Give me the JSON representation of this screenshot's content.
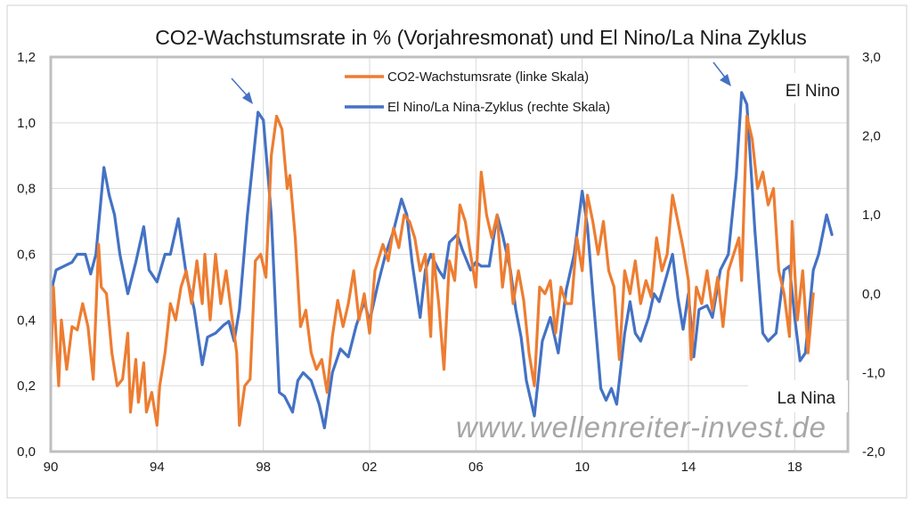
{
  "chart_data": {
    "type": "line",
    "title": "CO2-Wachstumsrate in % (Vorjahresmonat) und El Nino/La Nina Zyklus",
    "xlabel": "",
    "ylabel_left": "",
    "ylabel_right": "",
    "xlim": [
      1990,
      2020
    ],
    "ylim_left": [
      0.0,
      1.2
    ],
    "ylim_right": [
      -2.0,
      3.0
    ],
    "x_ticks": [
      {
        "value": 1990,
        "label": "90"
      },
      {
        "value": 1994,
        "label": "94"
      },
      {
        "value": 1998,
        "label": "98"
      },
      {
        "value": 2002,
        "label": "02"
      },
      {
        "value": 2006,
        "label": "06"
      },
      {
        "value": 2010,
        "label": "10"
      },
      {
        "value": 2014,
        "label": "14"
      },
      {
        "value": 2018,
        "label": "18"
      }
    ],
    "y_ticks_left": [
      {
        "value": 0.0,
        "label": "0,0"
      },
      {
        "value": 0.2,
        "label": "0,2"
      },
      {
        "value": 0.4,
        "label": "0,4"
      },
      {
        "value": 0.6,
        "label": "0,6"
      },
      {
        "value": 0.8,
        "label": "0,8"
      },
      {
        "value": 1.0,
        "label": "1,0"
      },
      {
        "value": 1.2,
        "label": "1,2"
      }
    ],
    "y_ticks_right": [
      {
        "value": -2.0,
        "label": "-2,0"
      },
      {
        "value": -1.0,
        "label": "-1,0"
      },
      {
        "value": 0.0,
        "label": "0,0"
      },
      {
        "value": 1.0,
        "label": "1,0"
      },
      {
        "value": 2.0,
        "label": "2,0"
      },
      {
        "value": 3.0,
        "label": "3,0"
      }
    ],
    "grid": true,
    "legend_position": "top-center",
    "series": [
      {
        "name": "CO2-Wachstumsrate (linke Skala)",
        "axis": "left",
        "color": "#ed7d31",
        "x": [
          1990.0,
          1990.1,
          1990.3,
          1990.4,
          1990.6,
          1990.8,
          1991.0,
          1991.2,
          1991.4,
          1991.6,
          1991.8,
          1991.9,
          1992.1,
          1992.3,
          1992.5,
          1992.7,
          1992.9,
          1993.0,
          1993.2,
          1993.3,
          1993.5,
          1993.6,
          1993.8,
          1994.0,
          1994.1,
          1994.3,
          1994.5,
          1994.7,
          1994.9,
          1995.1,
          1995.3,
          1995.5,
          1995.7,
          1995.8,
          1996.0,
          1996.2,
          1996.4,
          1996.6,
          1996.8,
          1997.0,
          1997.1,
          1997.3,
          1997.5,
          1997.7,
          1997.9,
          1998.1,
          1998.3,
          1998.5,
          1998.7,
          1998.9,
          1999.0,
          1999.2,
          1999.4,
          1999.6,
          1999.8,
          2000.0,
          2000.2,
          2000.4,
          2000.6,
          2000.8,
          2001.0,
          2001.2,
          2001.4,
          2001.6,
          2001.8,
          2002.0,
          2002.2,
          2002.5,
          2002.7,
          2002.9,
          2003.1,
          2003.3,
          2003.5,
          2003.7,
          2003.9,
          2004.1,
          2004.3,
          2004.4,
          2004.6,
          2004.8,
          2005.0,
          2005.2,
          2005.4,
          2005.6,
          2005.8,
          2006.0,
          2006.2,
          2006.4,
          2006.6,
          2006.8,
          2007.0,
          2007.2,
          2007.4,
          2007.6,
          2007.8,
          2008.0,
          2008.2,
          2008.4,
          2008.6,
          2008.8,
          2009.0,
          2009.2,
          2009.4,
          2009.6,
          2009.8,
          2010.0,
          2010.2,
          2010.4,
          2010.6,
          2010.8,
          2011.0,
          2011.2,
          2011.4,
          2011.6,
          2011.8,
          2012.0,
          2012.2,
          2012.4,
          2012.6,
          2012.8,
          2013.0,
          2013.2,
          2013.4,
          2013.6,
          2013.8,
          2014.0,
          2014.1,
          2014.3,
          2014.5,
          2014.7,
          2014.9,
          2015.1,
          2015.3,
          2015.5,
          2015.7,
          2015.9,
          2016.0,
          2016.2,
          2016.4,
          2016.6,
          2016.8,
          2017.0,
          2017.2,
          2017.4,
          2017.6,
          2017.8,
          2017.9,
          2018.1,
          2018.3,
          2018.5,
          2018.7
        ],
        "values": [
          0.25,
          0.5,
          0.2,
          0.4,
          0.25,
          0.38,
          0.37,
          0.45,
          0.38,
          0.22,
          0.63,
          0.5,
          0.48,
          0.3,
          0.2,
          0.22,
          0.36,
          0.12,
          0.28,
          0.15,
          0.27,
          0.12,
          0.18,
          0.08,
          0.2,
          0.3,
          0.45,
          0.4,
          0.5,
          0.55,
          0.45,
          0.58,
          0.45,
          0.6,
          0.4,
          0.6,
          0.45,
          0.55,
          0.42,
          0.3,
          0.08,
          0.2,
          0.22,
          0.58,
          0.6,
          0.53,
          0.9,
          1.02,
          0.98,
          0.8,
          0.84,
          0.65,
          0.38,
          0.43,
          0.3,
          0.25,
          0.28,
          0.18,
          0.35,
          0.46,
          0.38,
          0.45,
          0.55,
          0.4,
          0.48,
          0.36,
          0.55,
          0.63,
          0.58,
          0.68,
          0.62,
          0.72,
          0.7,
          0.65,
          0.55,
          0.6,
          0.35,
          0.6,
          0.45,
          0.25,
          0.58,
          0.52,
          0.75,
          0.7,
          0.6,
          0.5,
          0.85,
          0.72,
          0.65,
          0.72,
          0.5,
          0.63,
          0.45,
          0.55,
          0.46,
          0.3,
          0.2,
          0.5,
          0.48,
          0.52,
          0.36,
          0.5,
          0.45,
          0.45,
          0.65,
          0.55,
          0.78,
          0.7,
          0.6,
          0.7,
          0.55,
          0.5,
          0.28,
          0.55,
          0.48,
          0.58,
          0.45,
          0.52,
          0.47,
          0.65,
          0.55,
          0.6,
          0.78,
          0.7,
          0.62,
          0.52,
          0.28,
          0.5,
          0.45,
          0.55,
          0.43,
          0.53,
          0.38,
          0.55,
          0.6,
          0.65,
          0.52,
          1.02,
          0.95,
          0.8,
          0.85,
          0.75,
          0.8,
          0.55,
          0.48,
          0.35,
          0.7,
          0.4,
          0.55,
          0.3,
          0.48
        ]
      },
      {
        "name": "El Nino/La Nina-Zyklus (rechte Skala)",
        "axis": "right",
        "color": "#4472c4",
        "x": [
          1990.0,
          1990.2,
          1990.5,
          1990.8,
          1991.0,
          1991.3,
          1991.5,
          1991.7,
          1992.0,
          1992.2,
          1992.4,
          1992.6,
          1992.9,
          1993.2,
          1993.5,
          1993.7,
          1994.0,
          1994.3,
          1994.5,
          1994.8,
          1995.1,
          1995.4,
          1995.7,
          1995.9,
          1996.2,
          1996.5,
          1996.7,
          1996.9,
          1997.1,
          1997.4,
          1997.8,
          1998.0,
          1998.3,
          1998.6,
          1998.8,
          1999.1,
          1999.3,
          1999.5,
          1999.8,
          2000.1,
          2000.3,
          2000.6,
          2000.9,
          2001.2,
          2001.5,
          2001.8,
          2002.0,
          2002.3,
          2002.6,
          2002.9,
          2003.2,
          2003.4,
          2003.6,
          2003.9,
          2004.1,
          2004.3,
          2004.6,
          2004.8,
          2005.0,
          2005.3,
          2005.5,
          2005.8,
          2006.0,
          2006.2,
          2006.5,
          2006.8,
          2007.0,
          2007.3,
          2007.5,
          2007.7,
          2007.9,
          2008.2,
          2008.5,
          2008.8,
          2009.1,
          2009.4,
          2009.7,
          2010.0,
          2010.2,
          2010.4,
          2010.7,
          2010.9,
          2011.1,
          2011.3,
          2011.6,
          2011.8,
          2012.0,
          2012.2,
          2012.5,
          2012.7,
          2012.9,
          2013.2,
          2013.4,
          2013.6,
          2013.8,
          2014.0,
          2014.2,
          2014.4,
          2014.7,
          2014.9,
          2015.2,
          2015.5,
          2015.8,
          2016.0,
          2016.2,
          2016.5,
          2016.8,
          2017.0,
          2017.3,
          2017.6,
          2017.8,
          2018.0,
          2018.2,
          2018.4,
          2018.7,
          2018.9,
          2019.2,
          2019.4
        ],
        "values": [
          0.0,
          0.3,
          0.35,
          0.4,
          0.5,
          0.5,
          0.25,
          0.5,
          1.6,
          1.25,
          1.0,
          0.5,
          0.0,
          0.4,
          0.85,
          0.3,
          0.15,
          0.5,
          0.5,
          0.95,
          0.25,
          -0.2,
          -0.9,
          -0.55,
          -0.5,
          -0.4,
          -0.35,
          -0.6,
          -0.2,
          1.0,
          2.3,
          2.2,
          1.0,
          -1.25,
          -1.3,
          -1.5,
          -1.1,
          -1.0,
          -1.1,
          -1.4,
          -1.7,
          -1.0,
          -0.7,
          -0.8,
          -0.4,
          -0.1,
          -0.35,
          0.1,
          0.5,
          0.8,
          1.2,
          1.0,
          0.4,
          -0.3,
          0.3,
          0.5,
          0.3,
          0.2,
          0.65,
          0.75,
          0.55,
          0.3,
          0.4,
          0.35,
          0.35,
          1.0,
          0.75,
          0.3,
          -0.2,
          -0.55,
          -1.1,
          -1.55,
          -0.6,
          -0.3,
          -0.75,
          0.05,
          0.5,
          1.3,
          0.85,
          0.0,
          -1.2,
          -1.35,
          -1.2,
          -1.4,
          -0.5,
          -0.1,
          -0.5,
          -0.6,
          -0.3,
          0.0,
          -0.1,
          0.25,
          0.5,
          -0.05,
          -0.45,
          0.0,
          -0.8,
          -0.2,
          -0.15,
          -0.3,
          0.3,
          0.5,
          1.5,
          2.55,
          2.4,
          0.8,
          -0.5,
          -0.6,
          -0.5,
          0.3,
          0.35,
          -0.3,
          -0.85,
          -0.75,
          0.3,
          0.5,
          1.0,
          0.75
        ]
      }
    ],
    "annotations": [
      {
        "text": "El Nino",
        "position": "top-right"
      },
      {
        "text": "La Nina",
        "position": "bottom-right"
      }
    ],
    "watermark": "www.wellenreiter-invest.de"
  }
}
